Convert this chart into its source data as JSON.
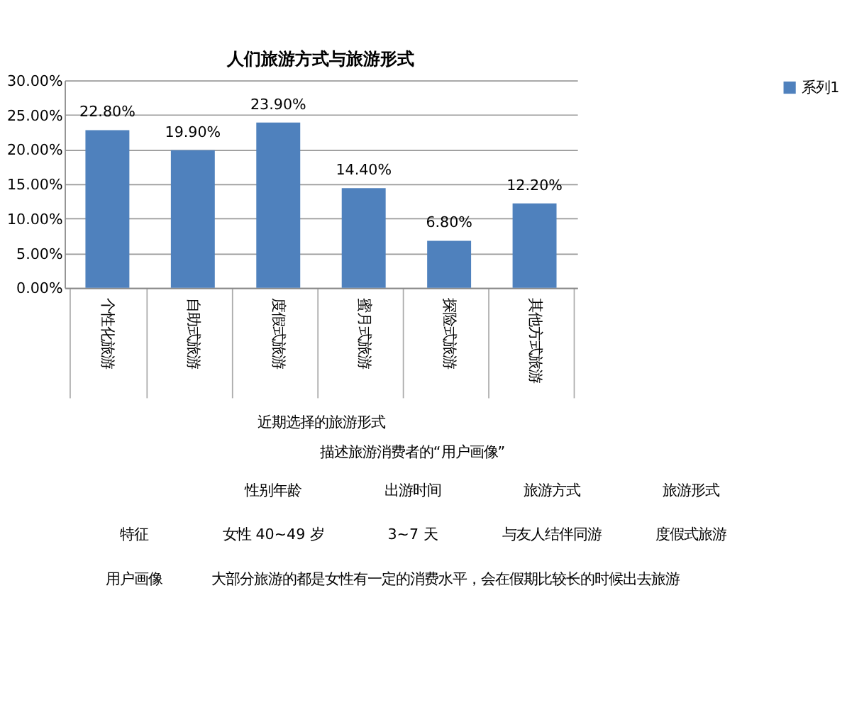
{
  "chart_data": {
    "type": "bar",
    "title": "人们旅游方式与旅游形式",
    "xlabel": "近期选择的旅游形式",
    "categories": [
      "个性化旅游",
      "自助式旅游",
      "度假式旅游",
      "蜜月式旅游",
      "探险式旅游",
      "其他方式旅游"
    ],
    "series": [
      {
        "name": "系列1",
        "color": "#4f81bd",
        "values": [
          22.8,
          19.9,
          23.9,
          14.4,
          6.8,
          12.2
        ],
        "value_labels": [
          "22.80%",
          "19.90%",
          "23.90%",
          "14.40%",
          "6.80%",
          "12.20%"
        ]
      }
    ],
    "ylim": [
      0,
      30
    ],
    "yticks": [
      {
        "value": 0,
        "label": "0.00%"
      },
      {
        "value": 5,
        "label": "5.00%"
      },
      {
        "value": 10,
        "label": "10.00%"
      },
      {
        "value": 15,
        "label": "15.00%"
      },
      {
        "value": 20,
        "label": "20.00%"
      },
      {
        "value": 25,
        "label": "25.00%"
      },
      {
        "value": 30,
        "label": "30.00%"
      }
    ],
    "grid": "y",
    "legend": "right",
    "annotations": [
      "描述旅游消费者的“用户画像”",
      "性别年龄",
      "出游时间",
      "旅游方式",
      "旅游形式",
      "特征",
      "女性 40~49 岁",
      "3~7 天",
      "与友人结伴同游",
      "度假式旅游",
      "用户画像",
      "大部分旅游的都是女性有一定的消费水平，会在假期比较长的时候出去旅游"
    ]
  }
}
